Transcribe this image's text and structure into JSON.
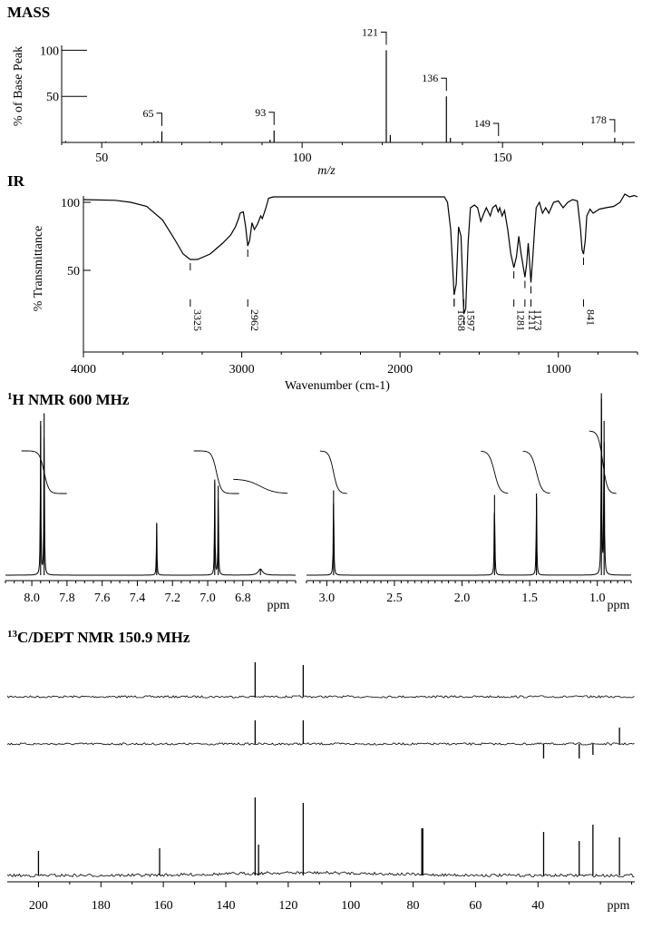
{
  "chart_data": [
    {
      "id": "ms",
      "type": "bar",
      "title": "MASS",
      "xlabel": "m/z",
      "ylabel": "% of Base Peak",
      "xlim": [
        40,
        183
      ],
      "ylim": [
        0,
        125
      ],
      "x_ticks": [
        50,
        100,
        150
      ],
      "y_ticks": [
        50,
        100
      ],
      "grid": false,
      "peaks": [
        {
          "x": 41,
          "y": 1.5
        },
        {
          "x": 51,
          "y": 1
        },
        {
          "x": 63,
          "y": 1.5
        },
        {
          "x": 64,
          "y": 1.5
        },
        {
          "x": 65,
          "y": 12,
          "label": "65"
        },
        {
          "x": 77,
          "y": 1
        },
        {
          "x": 92,
          "y": 3
        },
        {
          "x": 93,
          "y": 13,
          "label": "93"
        },
        {
          "x": 121,
          "y": 100,
          "label": "121"
        },
        {
          "x": 122,
          "y": 8
        },
        {
          "x": 136,
          "y": 50,
          "label": "136"
        },
        {
          "x": 137,
          "y": 5
        },
        {
          "x": 149,
          "y": 1,
          "label": "149"
        },
        {
          "x": 178,
          "y": 5,
          "label": "178"
        }
      ]
    },
    {
      "id": "ir",
      "type": "line",
      "title": "IR",
      "xlabel": "Wavenumber (cm-1)",
      "ylabel": "% Transmittance",
      "xlim": [
        4000,
        500
      ],
      "ylim": [
        -10,
        110
      ],
      "x_ticks": [
        4000,
        3000,
        2000,
        1000
      ],
      "y_ticks": [
        50,
        100
      ],
      "grid": false,
      "annotations": [
        "3325",
        "2962",
        "1658",
        "1597",
        "1281",
        "1211",
        "1173",
        "841"
      ],
      "points": [
        [
          4000,
          102
        ],
        [
          3800,
          101.5
        ],
        [
          3700,
          100
        ],
        [
          3600,
          97
        ],
        [
          3500,
          87
        ],
        [
          3420,
          72
        ],
        [
          3370,
          62
        ],
        [
          3325,
          58
        ],
        [
          3280,
          58
        ],
        [
          3200,
          62
        ],
        [
          3120,
          70
        ],
        [
          3070,
          76
        ],
        [
          3040,
          82
        ],
        [
          3020,
          88
        ],
        [
          3010,
          92
        ],
        [
          2990,
          93
        ],
        [
          2975,
          82
        ],
        [
          2962,
          68
        ],
        [
          2950,
          72
        ],
        [
          2935,
          85
        ],
        [
          2920,
          80
        ],
        [
          2900,
          84
        ],
        [
          2880,
          90
        ],
        [
          2870,
          88
        ],
        [
          2850,
          95
        ],
        [
          2830,
          103
        ],
        [
          2800,
          104
        ],
        [
          2600,
          104
        ],
        [
          2400,
          104
        ],
        [
          2200,
          104
        ],
        [
          2000,
          104
        ],
        [
          1800,
          104
        ],
        [
          1720,
          104
        ],
        [
          1700,
          100
        ],
        [
          1680,
          80
        ],
        [
          1658,
          32
        ],
        [
          1645,
          40
        ],
        [
          1630,
          82
        ],
        [
          1615,
          75
        ],
        [
          1597,
          18
        ],
        [
          1585,
          22
        ],
        [
          1570,
          70
        ],
        [
          1555,
          96
        ],
        [
          1530,
          98
        ],
        [
          1510,
          96
        ],
        [
          1490,
          86
        ],
        [
          1470,
          92
        ],
        [
          1455,
          96
        ],
        [
          1430,
          90
        ],
        [
          1415,
          96
        ],
        [
          1395,
          98
        ],
        [
          1380,
          93
        ],
        [
          1370,
          96
        ],
        [
          1355,
          90
        ],
        [
          1340,
          94
        ],
        [
          1320,
          80
        ],
        [
          1300,
          62
        ],
        [
          1281,
          52
        ],
        [
          1265,
          60
        ],
        [
          1250,
          75
        ],
        [
          1235,
          62
        ],
        [
          1211,
          45
        ],
        [
          1200,
          55
        ],
        [
          1190,
          70
        ],
        [
          1185,
          62
        ],
        [
          1173,
          41
        ],
        [
          1160,
          62
        ],
        [
          1150,
          80
        ],
        [
          1140,
          96
        ],
        [
          1120,
          100
        ],
        [
          1100,
          92
        ],
        [
          1080,
          96
        ],
        [
          1060,
          92
        ],
        [
          1030,
          100
        ],
        [
          1000,
          101
        ],
        [
          970,
          96
        ],
        [
          940,
          100
        ],
        [
          910,
          102
        ],
        [
          880,
          101
        ],
        [
          860,
          80
        ],
        [
          850,
          65
        ],
        [
          841,
          62
        ],
        [
          830,
          72
        ],
        [
          820,
          90
        ],
        [
          800,
          95
        ],
        [
          780,
          92
        ],
        [
          740,
          95
        ],
        [
          700,
          96
        ],
        [
          650,
          97
        ],
        [
          610,
          100
        ],
        [
          580,
          106
        ],
        [
          550,
          104
        ],
        [
          520,
          105
        ],
        [
          500,
          104
        ]
      ]
    },
    {
      "id": "h1_nmr",
      "type": "line",
      "title_sup": "1",
      "title": "H NMR 600 MHz",
      "xlabel": "ppm",
      "panels": [
        {
          "xlim": [
            8.15,
            6.5
          ],
          "x_ticks": [
            8.0,
            7.8,
            7.6,
            7.4,
            7.2,
            7.0,
            6.8
          ],
          "x_tick_labels": [
            "8.0",
            "7.8",
            "7.6",
            "7.4",
            "7.2",
            "7.0",
            "6.8"
          ],
          "peaks": [
            {
              "ppm": 7.95,
              "height": 100
            },
            {
              "ppm": 7.93,
              "height": 105
            },
            {
              "ppm": 7.29,
              "height": 34
            },
            {
              "ppm": 6.96,
              "height": 62
            },
            {
              "ppm": 6.94,
              "height": 58
            },
            {
              "ppm": 6.7,
              "height": 4
            }
          ]
        },
        {
          "xlim": [
            3.15,
            0.75
          ],
          "x_ticks": [
            3.0,
            2.5,
            2.0,
            1.5,
            1.0
          ],
          "x_tick_labels": [
            "3.0",
            "2.5",
            "2.0",
            "1.5",
            "1.0"
          ],
          "peaks": [
            {
              "ppm": 2.95,
              "height": 55
            },
            {
              "ppm": 1.76,
              "height": 52
            },
            {
              "ppm": 1.45,
              "height": 53
            },
            {
              "ppm": 0.97,
              "height": 118
            },
            {
              "ppm": 0.95,
              "height": 100
            }
          ]
        }
      ]
    },
    {
      "id": "c13_dept",
      "type": "line",
      "title_sup": "13",
      "title": "C/DEPT NMR 150.9 MHz",
      "xlabel": "ppm",
      "xlim": [
        210,
        9
      ],
      "x_ticks": [
        200,
        180,
        160,
        140,
        120,
        100,
        80,
        60,
        40
      ],
      "traces": [
        {
          "name": "dept90",
          "peaks": [
            {
              "ppm": 130.6,
              "height": 38
            },
            {
              "ppm": 115.2,
              "height": 35
            }
          ]
        },
        {
          "name": "dept135",
          "peaks": [
            {
              "ppm": 130.6,
              "height": 26
            },
            {
              "ppm": 115.2,
              "height": 26
            },
            {
              "ppm": 38.2,
              "height": -16
            },
            {
              "ppm": 26.8,
              "height": -16
            },
            {
              "ppm": 22.4,
              "height": -12
            },
            {
              "ppm": 13.9,
              "height": 18
            }
          ]
        },
        {
          "name": "c13",
          "peaks": [
            {
              "ppm": 200.0,
              "height": 27
            },
            {
              "ppm": 161.2,
              "height": 30
            },
            {
              "ppm": 130.6,
              "height": 86
            },
            {
              "ppm": 129.5,
              "height": 34
            },
            {
              "ppm": 115.2,
              "height": 80
            },
            {
              "ppm": 77.2,
              "height": 52
            },
            {
              "ppm": 76.9,
              "height": 52
            },
            {
              "ppm": 38.2,
              "height": 48
            },
            {
              "ppm": 26.8,
              "height": 38
            },
            {
              "ppm": 22.4,
              "height": 56
            },
            {
              "ppm": 13.9,
              "height": 42
            }
          ]
        }
      ]
    }
  ]
}
